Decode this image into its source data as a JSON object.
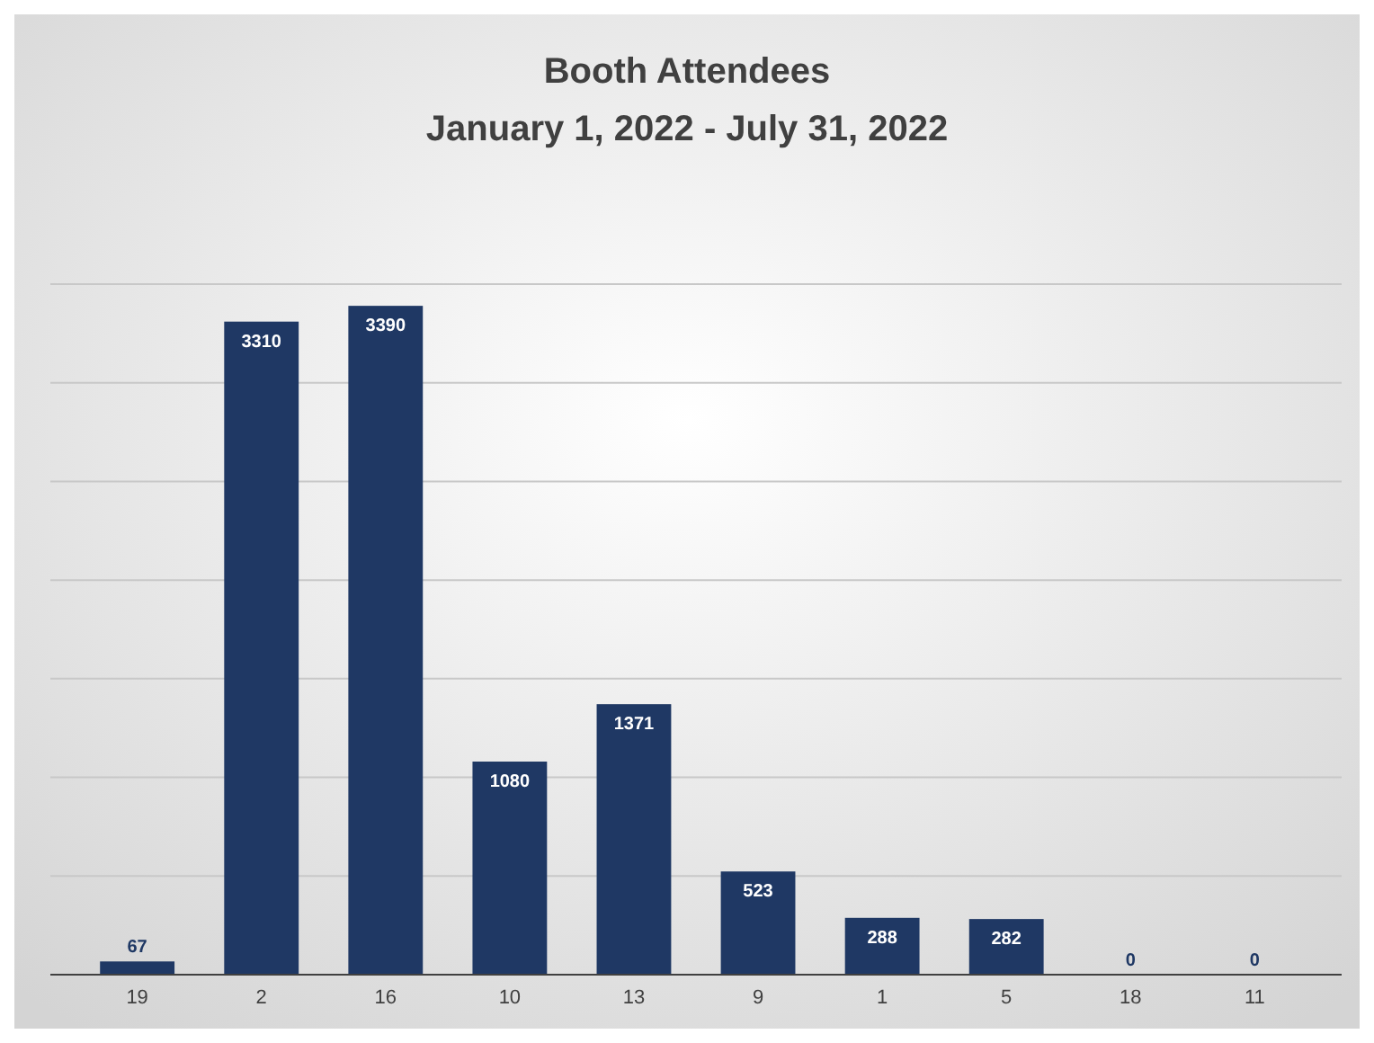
{
  "chart_data": {
    "type": "bar",
    "title": "Booth Attendees",
    "subtitle": "January 1, 2022 - July 31, 2022",
    "categories": [
      "19",
      "2",
      "16",
      "10",
      "13",
      "9",
      "1",
      "5",
      "18",
      "11"
    ],
    "values": [
      67,
      3310,
      3390,
      1080,
      1371,
      523,
      288,
      282,
      0,
      0
    ],
    "color": "#1f3864",
    "data_labels": true,
    "grid": "y",
    "tick_labels": "x",
    "ylim": [
      0,
      3500
    ],
    "yticks": [
      {
        "value": 0,
        "label": null
      },
      {
        "value": 500,
        "label": null
      },
      {
        "value": 1000,
        "label": null
      },
      {
        "value": 1500,
        "label": null
      },
      {
        "value": 2000,
        "label": null
      },
      {
        "value": 2500,
        "label": null
      },
      {
        "value": 3000,
        "label": null
      },
      {
        "value": 3500,
        "label": null
      }
    ]
  }
}
